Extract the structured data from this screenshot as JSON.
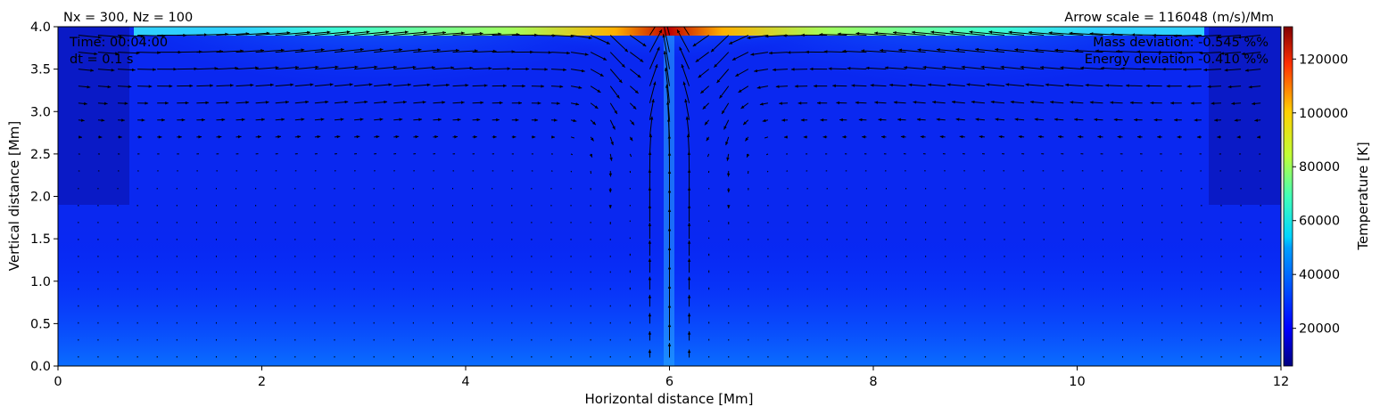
{
  "chart_data": {
    "type": "heatmap",
    "title_left": "Nx = 300, Nz = 100",
    "title_right": "Arrow scale = 116048 (m/s)/Mm",
    "xlabel": "Horizontal distance [Mm]",
    "ylabel": "Vertical distance [Mm]",
    "xlim": [
      0,
      12
    ],
    "ylim": [
      0,
      4
    ],
    "x_ticks": [
      "0",
      "2",
      "4",
      "6",
      "8",
      "10",
      "12"
    ],
    "y_ticks": [
      "0.0",
      "0.5",
      "1.0",
      "1.5",
      "2.0",
      "2.5",
      "3.0",
      "3.5",
      "4.0"
    ],
    "annotations_left": [
      "Time: 00:04:00",
      "dt = 0.1 s"
    ],
    "annotations_right": [
      "Mass deviation: -0.545 %%",
      "Energy deviation -0.410 %%"
    ],
    "grid": false,
    "overlay": "velocity quiver (arrows)",
    "colormap": "jet",
    "colorbar": {
      "label": "Temperature [K]",
      "range": [
        6000,
        132000
      ],
      "ticks": [
        "20000",
        "40000",
        "60000",
        "80000",
        "100000",
        "120000"
      ]
    },
    "field_description": {
      "background_temperature_K": 22000,
      "hot_top_layer_temperature_K": 45000,
      "peak_temperature_K": 130000,
      "peak_location_x_Mm": 6.0,
      "peak_location_y_Mm": 4.0
    }
  }
}
